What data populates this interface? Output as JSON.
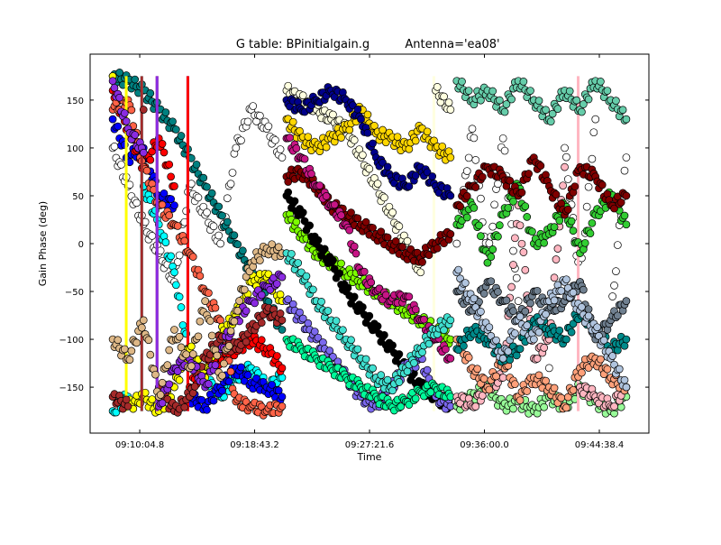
{
  "chart_data": {
    "type": "scatter",
    "title": "G table: BPinitialgain.g",
    "subtitle": "Antenna='ea08'",
    "xlabel": "Time",
    "ylabel": "Gain Phase (deg)",
    "xlim": [
      "09:06:21",
      "09:48:22"
    ],
    "ylim": [
      -198,
      198
    ],
    "xticks": [
      "09:10:04.8",
      "09:18:43.2",
      "09:27:21.6",
      "09:36:00.0",
      "09:44:38.4"
    ],
    "yticks": [
      -150,
      -100,
      -50,
      0,
      50,
      100,
      150
    ],
    "grid": false,
    "marker": "circle, black edge",
    "scans": [
      {
        "times": [
          "09:08:03",
          "09:09:12",
          "09:10:22",
          "09:11:31",
          "09:12:41",
          "09:13:50",
          "09:15:00",
          "09:16:09",
          "09:17:19",
          "09:18:28",
          "09:19:38",
          "09:20:47"
        ],
        "series": [
          {
            "color": "#ffffff",
            "values": [
              100,
              60,
              20,
              -10,
              -40,
              60,
              30,
              0,
              100,
              140,
              120,
              90
            ]
          },
          {
            "color": "#008080",
            "values": [
              175,
              170,
              160,
              140,
              120,
              90,
              60,
              30,
              0,
              -30,
              -60,
              -90
            ]
          },
          {
            "color": "#00ffff",
            "values": [
              -175,
              -160,
              60,
              20,
              -30,
              -120,
              -140,
              -160,
              -140,
              -130,
              -150,
              -140
            ]
          },
          {
            "color": "#0000ff",
            "values": [
              130,
              90,
              100,
              50,
              40,
              -160,
              -170,
              -150,
              -130,
              -145,
              -150,
              -160
            ]
          },
          {
            "color": "#ff0000",
            "values": [
              160,
              120,
              80,
              110,
              60,
              -150,
              -130,
              -120,
              -110,
              -100,
              -110,
              -130
            ]
          },
          {
            "color": "#ff6347",
            "values": [
              140,
              150,
              80,
              40,
              20,
              -10,
              -50,
              -80,
              -165,
              -170,
              -175,
              -170
            ]
          },
          {
            "color": "#ffff00",
            "values": [
              175,
              -170,
              -160,
              -175,
              -150,
              -110,
              -140,
              -95,
              -75,
              -40,
              -35,
              -60
            ]
          },
          {
            "color": "#a52a2a",
            "values": [
              -160,
              -170,
              140,
              -150,
              -175,
              -160,
              -120,
              -100,
              -110,
              -90,
              -70,
              -80
            ]
          },
          {
            "color": "#8a2be2",
            "values": [
              170,
              120,
              95,
              -170,
              -130,
              -120,
              -150,
              -110,
              -80,
              -60,
              -45,
              -35
            ]
          },
          {
            "color": "#deb887",
            "values": [
              -100,
              -120,
              -80,
              -160,
              -90,
              -130,
              -60,
              -140,
              -70,
              -20,
              -5,
              -10
            ]
          }
        ]
      },
      {
        "times": [
          "09:21:07",
          "09:22:14",
          "09:23:22",
          "09:24:29",
          "09:25:36",
          "09:26:43",
          "09:27:51",
          "09:28:58",
          "09:30:05",
          "09:31:12",
          "09:32:20",
          "09:33:27"
        ],
        "series": [
          {
            "color": "#ffffe0",
            "values": [
              160,
              150,
              140,
              130,
              120,
              90,
              60,
              30,
              0,
              -30,
              160,
              140
            ]
          },
          {
            "color": "#ffd700",
            "values": [
              130,
              110,
              100,
              110,
              120,
              140,
              115,
              110,
              100,
              120,
              100,
              90
            ]
          },
          {
            "color": "#00008b",
            "values": [
              150,
              140,
              150,
              160,
              150,
              130,
              90,
              70,
              60,
              80,
              60,
              50
            ]
          },
          {
            "color": "#800000",
            "values": [
              70,
              75,
              60,
              40,
              30,
              20,
              10,
              0,
              -10,
              -15,
              0,
              10
            ]
          },
          {
            "color": "#7cfc00",
            "values": [
              30,
              10,
              -10,
              -20,
              -30,
              -40,
              -50,
              -60,
              -70,
              -80,
              -90,
              -100
            ]
          },
          {
            "color": "#c71585",
            "values": [
              110,
              90,
              60,
              40,
              20,
              -30,
              -50,
              -60,
              -55,
              -80,
              -100,
              -120
            ]
          },
          {
            "color": "#000000",
            "values": [
              50,
              30,
              0,
              -20,
              -50,
              -70,
              -90,
              -110,
              -130,
              -150,
              -160,
              -170
            ]
          },
          {
            "color": "#7b68ee",
            "values": [
              -60,
              -80,
              -100,
              -120,
              -140,
              -160,
              -170,
              -150,
              -130,
              -120,
              -160,
              -170
            ]
          },
          {
            "color": "#00fa9a",
            "values": [
              -100,
              -110,
              -120,
              -130,
              -140,
              -150,
              -160,
              -170,
              -165,
              -155,
              -150,
              -160
            ]
          },
          {
            "color": "#40e0d0",
            "values": [
              -10,
              -30,
              -60,
              -80,
              -100,
              -120,
              -140,
              -150,
              -130,
              -110,
              -90,
              -80
            ]
          }
        ]
      },
      {
        "times": [
          "09:33:55",
          "09:35:05",
          "09:36:14",
          "09:37:24",
          "09:38:33",
          "09:39:43",
          "09:40:52",
          "09:42:02",
          "09:43:11",
          "09:44:21",
          "09:45:30",
          "09:46:40"
        ],
        "series": [
          {
            "color": "#ffffff",
            "values": [
              0,
              120,
              -20,
              110,
              -60,
              150,
              -130,
              100,
              -40,
              130,
              -80,
              90
            ]
          },
          {
            "color": "#98fb98",
            "values": [
              -170,
              -160,
              -150,
              -170,
              -165,
              -175,
              -160,
              -170,
              -150,
              -165,
              -175,
              -160
            ]
          },
          {
            "color": "#ffb6c1",
            "values": [
              -160,
              -170,
              -150,
              -140,
              40,
              -120,
              -100,
              80,
              -150,
              -160,
              -170,
              -150
            ]
          },
          {
            "color": "#ffa07a",
            "values": [
              -100,
              -130,
              -150,
              -120,
              -160,
              -140,
              -150,
              -170,
              -130,
              -120,
              -140,
              -150
            ]
          },
          {
            "color": "#008b8b",
            "values": [
              -110,
              -90,
              -100,
              -120,
              -110,
              -80,
              -90,
              -100,
              -70,
              -90,
              -110,
              -100
            ]
          },
          {
            "color": "#708090",
            "values": [
              -50,
              -70,
              -40,
              -60,
              -80,
              -50,
              -70,
              -60,
              -40,
              -100,
              -80,
              -60
            ]
          },
          {
            "color": "#b0c4de",
            "values": [
              -30,
              -60,
              -90,
              -120,
              -80,
              -100,
              -60,
              -40,
              -70,
              -90,
              -120,
              -150
            ]
          },
          {
            "color": "#32cd32",
            "values": [
              20,
              40,
              -20,
              30,
              60,
              0,
              10,
              40,
              -10,
              30,
              50,
              20
            ]
          },
          {
            "color": "#800000",
            "values": [
              40,
              60,
              80,
              70,
              50,
              90,
              60,
              30,
              80,
              70,
              40,
              50
            ]
          },
          {
            "color": "#66cdaa",
            "values": [
              170,
              150,
              160,
              140,
              170,
              150,
              130,
              160,
              140,
              170,
              150,
              130
            ]
          }
        ]
      }
    ]
  }
}
